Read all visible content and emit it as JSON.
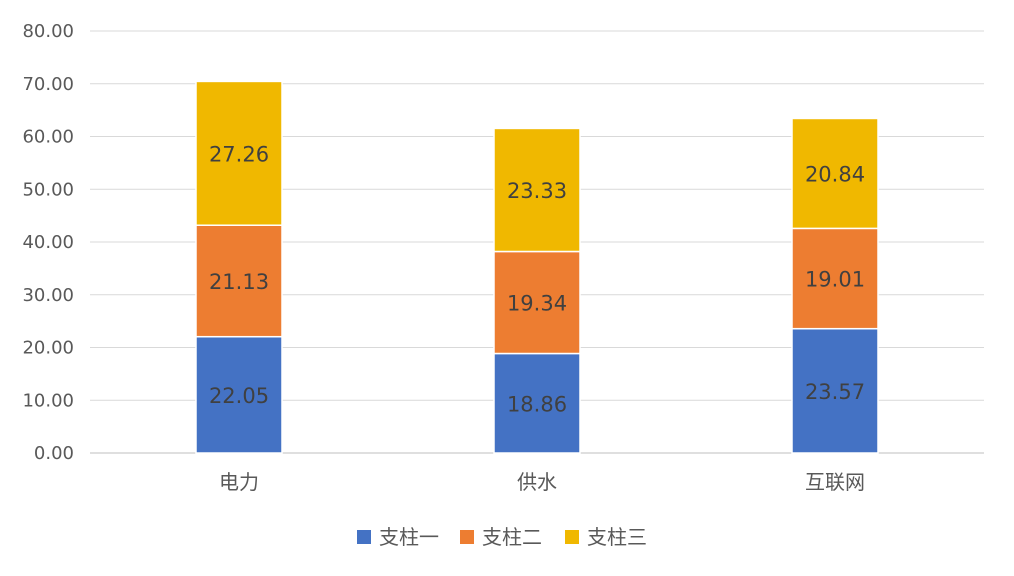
{
  "chart_data": {
    "type": "bar",
    "stacked": true,
    "categories": [
      "电力",
      "供水",
      "互联网"
    ],
    "series": [
      {
        "name": "支柱一",
        "color": "#4472C4",
        "values": [
          22.05,
          18.86,
          23.57
        ]
      },
      {
        "name": "支柱二",
        "color": "#ED7D31",
        "values": [
          21.13,
          19.34,
          19.01
        ]
      },
      {
        "name": "支柱三",
        "color": "#F0B800",
        "values": [
          27.26,
          23.33,
          20.84
        ]
      }
    ],
    "ylim": [
      0,
      80
    ],
    "yticks": [
      "0.00",
      "10.00",
      "20.00",
      "30.00",
      "40.00",
      "50.00",
      "60.00",
      "70.00",
      "80.00"
    ],
    "grid": true,
    "legend_position": "bottom"
  }
}
